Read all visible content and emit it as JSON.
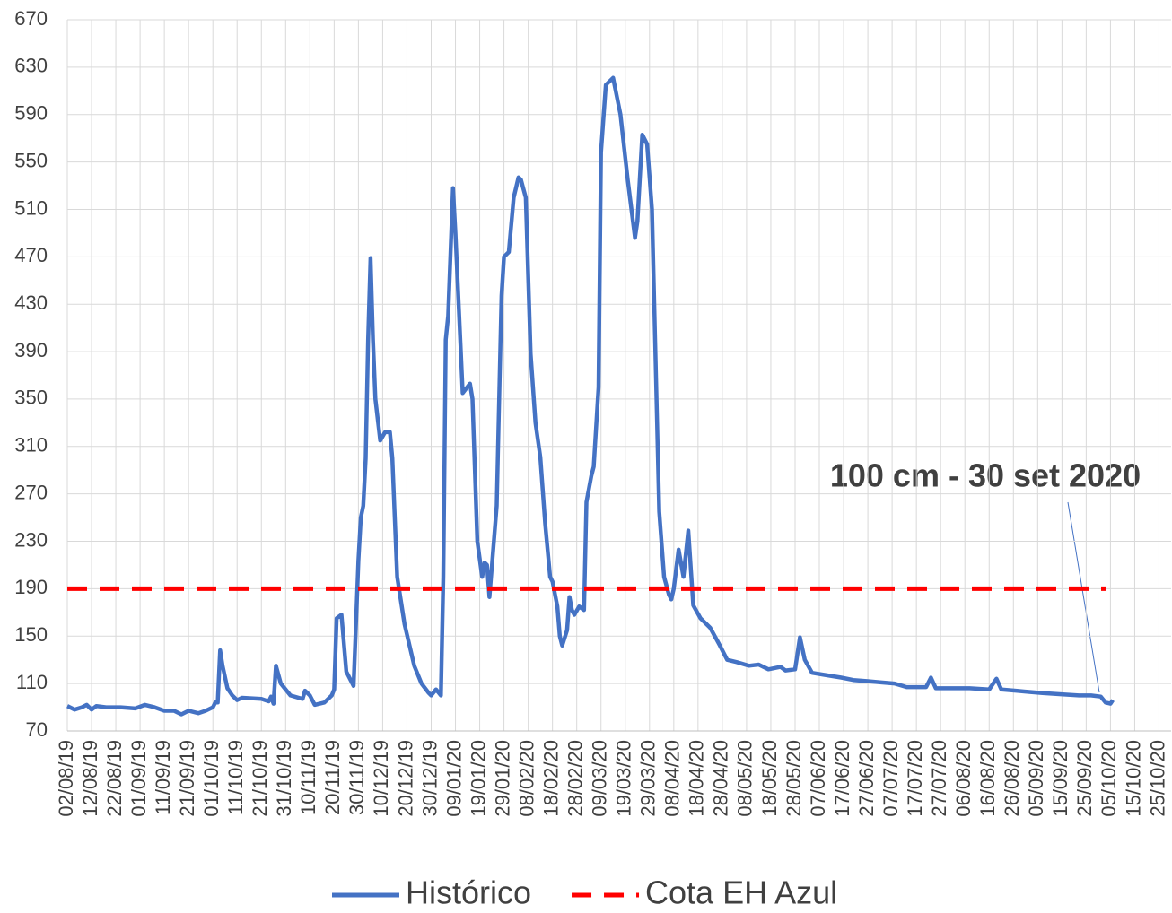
{
  "chart_data": {
    "type": "line",
    "annotation": "100 cm - 30 set 2020",
    "xlim": [
      "02/08/19",
      "30/10/20"
    ],
    "xticks": [
      "02/08/19",
      "12/08/19",
      "22/08/19",
      "01/09/19",
      "11/09/19",
      "21/09/19",
      "01/10/19",
      "11/10/19",
      "21/10/19",
      "31/10/19",
      "10/11/19",
      "20/11/19",
      "30/11/19",
      "10/12/19",
      "20/12/19",
      "30/12/19",
      "09/01/20",
      "19/01/20",
      "29/01/20",
      "08/02/20",
      "18/02/20",
      "28/02/20",
      "09/03/20",
      "19/03/20",
      "29/03/20",
      "08/04/20",
      "18/04/20",
      "28/04/20",
      "08/05/20",
      "18/05/20",
      "28/05/20",
      "07/06/20",
      "17/06/20",
      "27/06/20",
      "07/07/20",
      "17/07/20",
      "27/07/20",
      "06/08/20",
      "16/08/20",
      "26/08/20",
      "05/09/20",
      "15/09/20",
      "25/09/20",
      "05/10/20",
      "15/10/20",
      "25/10/20"
    ],
    "ylim": [
      70,
      670
    ],
    "yticks": [
      70,
      110,
      150,
      190,
      230,
      270,
      310,
      350,
      390,
      430,
      470,
      510,
      550,
      590,
      630,
      670
    ],
    "grid": true,
    "legend": "bottom",
    "series": [
      {
        "name": "Histórico",
        "color": "#4472c4",
        "dash": false,
        "x": [
          "02/08/19",
          "05/08/19",
          "08/08/19",
          "10/08/19",
          "12/08/19",
          "14/08/19",
          "18/08/19",
          "24/08/19",
          "30/08/19",
          "03/09/19",
          "07/09/19",
          "11/09/19",
          "15/09/19",
          "18/09/19",
          "21/09/19",
          "25/09/19",
          "28/09/19",
          "01/10/19",
          "02/10/19",
          "03/10/19",
          "04/10/19",
          "05/10/19",
          "07/10/19",
          "09/10/19",
          "11/10/19",
          "13/10/19",
          "21/10/19",
          "24/10/19",
          "25/10/19",
          "26/10/19",
          "27/10/19",
          "29/10/19",
          "02/11/19",
          "07/11/19",
          "08/11/19",
          "10/11/19",
          "12/11/19",
          "16/11/19",
          "19/11/19",
          "20/11/19",
          "21/11/19",
          "23/11/19",
          "25/11/19",
          "28/11/19",
          "30/11/19",
          "01/12/19",
          "02/12/19",
          "03/12/19",
          "04/12/19",
          "05/12/19",
          "06/12/19",
          "07/12/19",
          "09/12/19",
          "11/12/19",
          "13/12/19",
          "14/12/19",
          "16/12/19",
          "19/12/19",
          "23/12/19",
          "26/12/19",
          "29/12/19",
          "30/12/19",
          "01/01/20",
          "03/01/20",
          "04/01/20",
          "05/01/20",
          "06/01/20",
          "08/01/20",
          "09/01/20",
          "11/01/20",
          "12/01/20",
          "15/01/20",
          "16/01/20",
          "18/01/20",
          "20/01/20",
          "21/01/20",
          "22/01/20",
          "23/01/20",
          "26/01/20",
          "28/01/20",
          "29/01/20",
          "31/01/20",
          "02/02/20",
          "04/02/20",
          "05/02/20",
          "07/02/20",
          "09/02/20",
          "11/02/20",
          "13/02/20",
          "15/02/20",
          "17/02/20",
          "18/02/20",
          "20/02/20",
          "21/02/20",
          "22/02/20",
          "24/02/20",
          "25/02/20",
          "26/02/20",
          "27/02/20",
          "29/02/20",
          "02/03/20",
          "03/03/20",
          "05/03/20",
          "06/03/20",
          "08/03/20",
          "09/03/20",
          "11/03/20",
          "14/03/20",
          "17/03/20",
          "20/03/20",
          "23/03/20",
          "24/03/20",
          "26/03/20",
          "28/03/20",
          "30/03/20",
          "02/04/20",
          "04/04/20",
          "06/04/20",
          "07/04/20",
          "08/04/20",
          "10/04/20",
          "12/04/20",
          "14/04/20",
          "16/04/20",
          "19/04/20",
          "23/04/20",
          "27/04/20",
          "30/04/20",
          "04/05/20",
          "09/05/20",
          "13/05/20",
          "17/05/20",
          "22/05/20",
          "24/05/20",
          "28/05/20",
          "30/05/20",
          "01/06/20",
          "04/06/20",
          "10/06/20",
          "16/06/20",
          "21/06/20",
          "27/06/20",
          "02/07/20",
          "08/07/20",
          "13/07/20",
          "21/07/20",
          "23/07/20",
          "25/07/20",
          "01/08/20",
          "08/08/20",
          "16/08/20",
          "19/08/20",
          "21/08/20",
          "27/08/20",
          "01/09/20",
          "07/09/20",
          "14/09/20",
          "22/09/20",
          "27/09/20",
          "01/10/20",
          "03/10/20",
          "05/10/20",
          "06/10/20"
        ],
        "values": [
          91,
          88,
          90,
          92,
          88,
          91,
          90,
          90,
          89,
          92,
          90,
          87,
          87,
          84,
          87,
          85,
          87,
          90,
          94,
          94,
          138,
          125,
          106,
          100,
          96,
          98,
          97,
          95,
          99,
          93,
          125,
          110,
          100,
          97,
          104,
          100,
          92,
          94,
          100,
          105,
          165,
          168,
          120,
          108,
          214,
          250,
          260,
          300,
          400,
          469,
          400,
          350,
          315,
          322,
          322,
          300,
          200,
          160,
          125,
          110,
          102,
          100,
          105,
          100,
          200,
          400,
          420,
          528,
          490,
          400,
          355,
          363,
          350,
          230,
          200,
          212,
          210,
          183,
          260,
          437,
          470,
          474,
          520,
          537,
          535,
          520,
          388,
          330,
          301,
          245,
          200,
          196,
          175,
          150,
          142,
          155,
          183,
          172,
          168,
          175,
          172,
          263,
          285,
          293,
          360,
          558,
          615,
          621,
          590,
          535,
          486,
          500,
          573,
          565,
          510,
          255,
          200,
          185,
          181,
          190,
          223,
          200,
          239,
          176,
          165,
          157,
          142,
          130,
          128,
          125,
          126,
          122,
          124,
          121,
          122,
          149,
          130,
          119,
          117,
          115,
          113,
          112,
          111,
          110,
          107,
          107,
          115,
          106,
          106,
          106,
          105,
          114,
          105,
          104,
          103,
          102,
          101,
          100,
          100,
          99,
          94,
          93,
          96
        ]
      },
      {
        "name": "Cota EH Azul",
        "color": "#ff0000",
        "dash": true,
        "x": [
          "02/08/19",
          "03/10/20"
        ],
        "values": [
          190,
          190
        ]
      }
    ]
  }
}
